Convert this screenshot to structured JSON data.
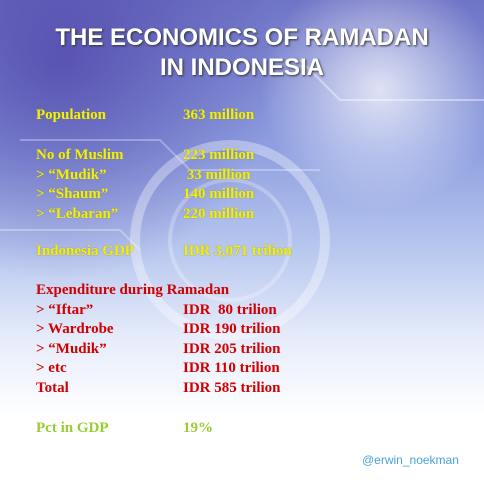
{
  "header": {
    "title_lines": [
      "THE ECONOMICS OF RAMADAN",
      "IN INDONESIA"
    ]
  },
  "sections": [
    {
      "rows": [
        [
          "Population",
          "363 million"
        ]
      ]
    },
    {
      "rows": [
        [
          "No of Muslim",
          "223 million"
        ],
        [
          "> “Mudik”",
          " 33 million"
        ],
        [
          "> “Shaum”",
          "140 million"
        ],
        [
          "> “Lebaran”",
          "220 million"
        ]
      ]
    },
    {
      "rows": [
        [
          "Indonesia GDP",
          "IDR 3,071 trilion"
        ]
      ]
    },
    {
      "heading": "Expenditure during Ramadan",
      "rows": [
        [
          "> “Iftar”",
          "IDR  80 trilion"
        ],
        [
          "> Wardrobe",
          "IDR 190 trilion"
        ],
        [
          "> “Mudik”",
          "IDR 205 trilion"
        ],
        [
          "> etc",
          "IDR 110 trilion"
        ],
        [
          "Total",
          "IDR 585 trilion"
        ]
      ]
    },
    {
      "rows": [
        [
          "Pct in GDP",
          "19%"
        ]
      ]
    }
  ],
  "footer": {
    "credit": "@erwin_noekman"
  }
}
